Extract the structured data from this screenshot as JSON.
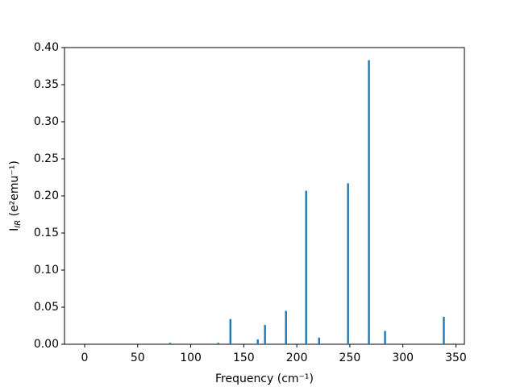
{
  "chart_data": {
    "type": "bar",
    "xlabel": "Frequency (cm⁻¹)",
    "ylabel": {
      "base": "I",
      "subscript": "IR",
      "rest": " (e²emu⁻¹)"
    },
    "x": [
      80.5,
      126,
      137.4,
      163.2,
      170,
      189.8,
      208.8,
      221,
      248.3,
      268,
      283.2,
      338.6
    ],
    "values": [
      0.002,
      0.002,
      0.034,
      0.0065,
      0.026,
      0.045,
      0.207,
      0.009,
      0.217,
      0.383,
      0.018,
      0.037
    ],
    "color": "#1f77b4",
    "xlim": [
      -19,
      358
    ],
    "ylim": [
      0,
      0.4
    ],
    "xticks": [
      0,
      50,
      100,
      150,
      200,
      250,
      300,
      350
    ],
    "yticks": [
      {
        "value": 0,
        "label": "0.00"
      },
      {
        "value": 0.05,
        "label": "0.05"
      },
      {
        "value": 0.1,
        "label": "0.10"
      },
      {
        "value": 0.15,
        "label": "0.15"
      },
      {
        "value": 0.2,
        "label": "0.20"
      },
      {
        "value": 0.25,
        "label": "0.25"
      },
      {
        "value": 0.3,
        "label": "0.30"
      },
      {
        "value": 0.35,
        "label": "0.35"
      },
      {
        "value": 0.4,
        "label": "0.40"
      }
    ]
  }
}
